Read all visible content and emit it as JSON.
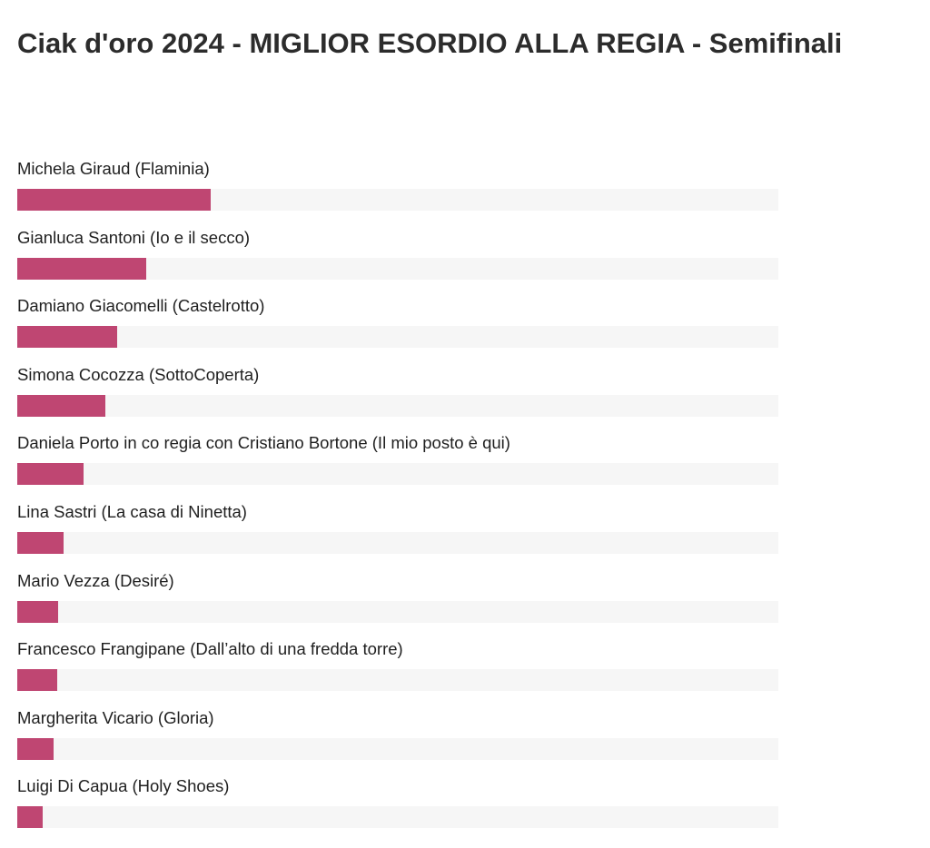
{
  "colors": {
    "bar": "#bf4672",
    "track": "#f6f6f6",
    "text": "#1f1f1f",
    "title": "#2c2c2c"
  },
  "chart_data": {
    "type": "bar",
    "orientation": "horizontal",
    "title": "Ciak d'oro 2024 - MIGLIOR ESORDIO ALLA REGIA - Semifinali",
    "value_unit": "share of scale",
    "xlim": [
      0,
      1
    ],
    "grid": false,
    "legend": "none",
    "categories": [
      "Michela Giraud (Flaminia)",
      "Gianluca Santoni (Io e il secco)",
      "Damiano Giacomelli (Castelrotto)",
      "Simona Cocozza (SottoCoperta)",
      "Daniela Porto in co regia con Cristiano Bortone (Il mio posto è qui)",
      "Lina Sastri (La casa di Ninetta)",
      "Mario Vezza (Desiré)",
      "Francesco Frangipane (Dall’alto di una fredda torre)",
      "Margherita Vicario (Gloria)",
      "Luigi Di Capua (Holy Shoes)"
    ],
    "values": [
      0.254,
      0.169,
      0.131,
      0.116,
      0.087,
      0.061,
      0.054,
      0.053,
      0.048,
      0.034
    ]
  }
}
